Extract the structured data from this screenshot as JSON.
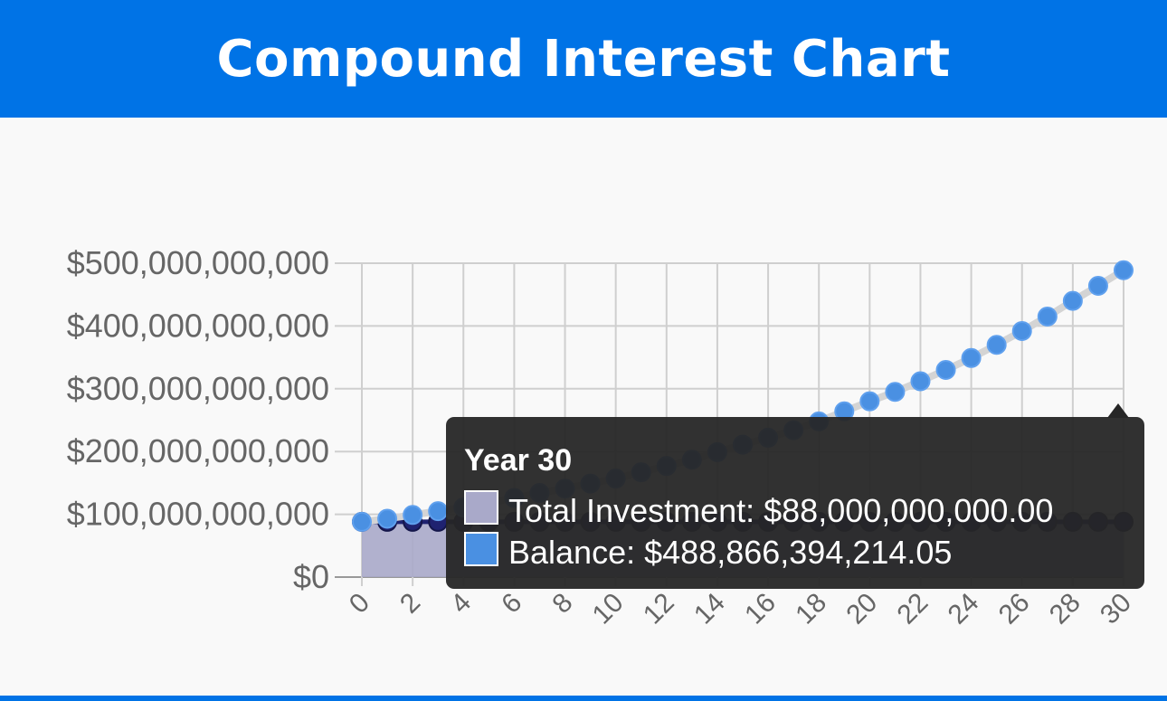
{
  "chart_data": {
    "type": "line",
    "title": "Compound Interest Chart",
    "x": [
      0,
      1,
      2,
      3,
      4,
      5,
      6,
      7,
      8,
      9,
      10,
      11,
      12,
      13,
      14,
      15,
      16,
      17,
      18,
      19,
      20,
      21,
      22,
      23,
      24,
      25,
      26,
      27,
      28,
      29,
      30
    ],
    "series": [
      {
        "name": "Total Investment",
        "color": "#1f2270",
        "fill": "#a9a9c9",
        "values": [
          88000000000,
          88000000000,
          88000000000,
          88000000000,
          88000000000,
          88000000000,
          88000000000,
          88000000000,
          88000000000,
          88000000000,
          88000000000,
          88000000000,
          88000000000,
          88000000000,
          88000000000,
          88000000000,
          88000000000,
          88000000000,
          88000000000,
          88000000000,
          88000000000,
          88000000000,
          88000000000,
          88000000000,
          88000000000,
          88000000000,
          88000000000,
          88000000000,
          88000000000,
          88000000000,
          88000000000
        ]
      },
      {
        "name": "Balance",
        "color": "#4a90e2",
        "values": [
          88000000000,
          93000000000,
          99000000000,
          105000000000,
          111000000000,
          118000000000,
          126000000000,
          134000000000,
          141000000000,
          149000000000,
          157000000000,
          167000000000,
          177000000000,
          187000000000,
          199000000000,
          211000000000,
          222000000000,
          234000000000,
          248000000000,
          264000000000,
          280000000000,
          295000000000,
          312000000000,
          330000000000,
          349000000000,
          370000000000,
          392000000000,
          415000000000,
          440000000000,
          464000000000,
          488866394214.05
        ]
      }
    ],
    "xlim": [
      0,
      30
    ],
    "xticks": [
      0,
      2,
      4,
      6,
      8,
      10,
      12,
      14,
      16,
      18,
      20,
      22,
      24,
      26,
      28,
      30
    ],
    "ylim": [
      0,
      500000000000
    ],
    "yticks": [
      {
        "value": 0,
        "label": "$0"
      },
      {
        "value": 100000000000,
        "label": "$100,000,000,000"
      },
      {
        "value": 200000000000,
        "label": "$200,000,000,000"
      },
      {
        "value": 300000000000,
        "label": "$300,000,000,000"
      },
      {
        "value": 400000000000,
        "label": "$400,000,000,000"
      },
      {
        "value": 500000000000,
        "label": "$500,000,000,000"
      }
    ],
    "grid": true,
    "tooltip": {
      "title": "Year 30",
      "index": 30,
      "values": [
        "$88,000,000,000.00",
        "$488,866,394,214.05"
      ]
    }
  }
}
